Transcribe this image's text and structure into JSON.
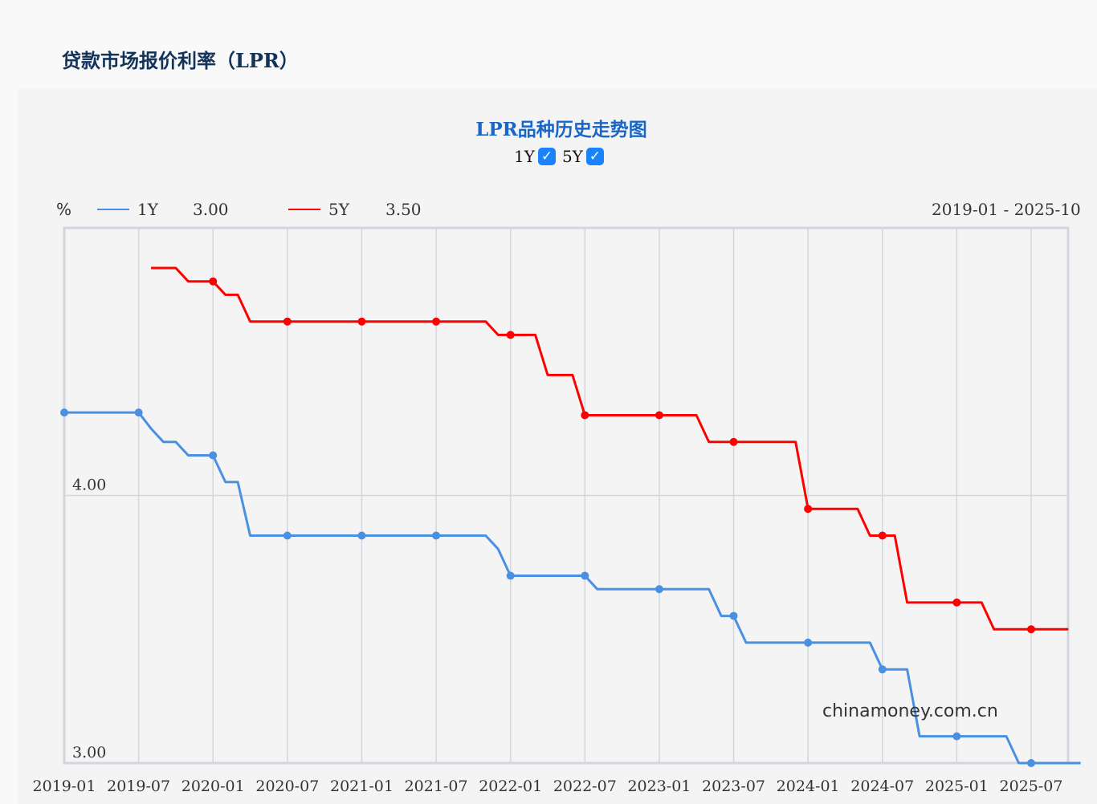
{
  "page_title": "贷款市场报价利率（LPR）",
  "watermark": "chinamoney.com.cn",
  "chart_data": {
    "type": "line",
    "title": "LPR品种历史走势图",
    "ylabel": "%",
    "date_range": "2019-01 - 2025-10",
    "ylim": [
      3.0,
      5.0
    ],
    "y_ticks": [
      "3.00",
      "4.00"
    ],
    "x_ticks": [
      "2019-01",
      "2019-07",
      "2020-01",
      "2020-07",
      "2021-01",
      "2021-07",
      "2022-01",
      "2022-07",
      "2023-01",
      "2023-07",
      "2024-01",
      "2024-07",
      "2025-01",
      "2025-07"
    ],
    "grid": true,
    "legend_position": "top-left",
    "x_start": "2019-01",
    "series": [
      {
        "name": "1Y",
        "latest": "3.00",
        "color": "#4a90e2",
        "checked": true,
        "start": "2019-01",
        "values": [
          4.31,
          4.31,
          4.31,
          4.31,
          4.31,
          4.31,
          4.31,
          4.25,
          4.2,
          4.2,
          4.15,
          4.15,
          4.15,
          4.05,
          4.05,
          3.85,
          3.85,
          3.85,
          3.85,
          3.85,
          3.85,
          3.85,
          3.85,
          3.85,
          3.85,
          3.85,
          3.85,
          3.85,
          3.85,
          3.85,
          3.85,
          3.85,
          3.85,
          3.85,
          3.85,
          3.8,
          3.7,
          3.7,
          3.7,
          3.7,
          3.7,
          3.7,
          3.7,
          3.65,
          3.65,
          3.65,
          3.65,
          3.65,
          3.65,
          3.65,
          3.65,
          3.65,
          3.65,
          3.55,
          3.55,
          3.45,
          3.45,
          3.45,
          3.45,
          3.45,
          3.45,
          3.45,
          3.45,
          3.45,
          3.45,
          3.45,
          3.35,
          3.35,
          3.35,
          3.1,
          3.1,
          3.1,
          3.1,
          3.1,
          3.1,
          3.1,
          3.1,
          3.0,
          3.0,
          3.0,
          3.0,
          3.0,
          3.0
        ]
      },
      {
        "name": "5Y",
        "latest": "3.50",
        "color": "#ff0000",
        "checked": true,
        "start": "2019-08",
        "values": [
          4.85,
          4.85,
          4.85,
          4.8,
          4.8,
          4.8,
          4.75,
          4.75,
          4.65,
          4.65,
          4.65,
          4.65,
          4.65,
          4.65,
          4.65,
          4.65,
          4.65,
          4.65,
          4.65,
          4.65,
          4.65,
          4.65,
          4.65,
          4.65,
          4.65,
          4.65,
          4.65,
          4.65,
          4.6,
          4.6,
          4.6,
          4.6,
          4.45,
          4.45,
          4.45,
          4.3,
          4.3,
          4.3,
          4.3,
          4.3,
          4.3,
          4.3,
          4.3,
          4.3,
          4.3,
          4.2,
          4.2,
          4.2,
          4.2,
          4.2,
          4.2,
          4.2,
          4.2,
          3.95,
          3.95,
          3.95,
          3.95,
          3.95,
          3.85,
          3.85,
          3.85,
          3.6,
          3.6,
          3.6,
          3.6,
          3.6,
          3.6,
          3.6,
          3.5,
          3.5,
          3.5,
          3.5,
          3.5,
          3.5,
          3.5
        ]
      }
    ]
  }
}
